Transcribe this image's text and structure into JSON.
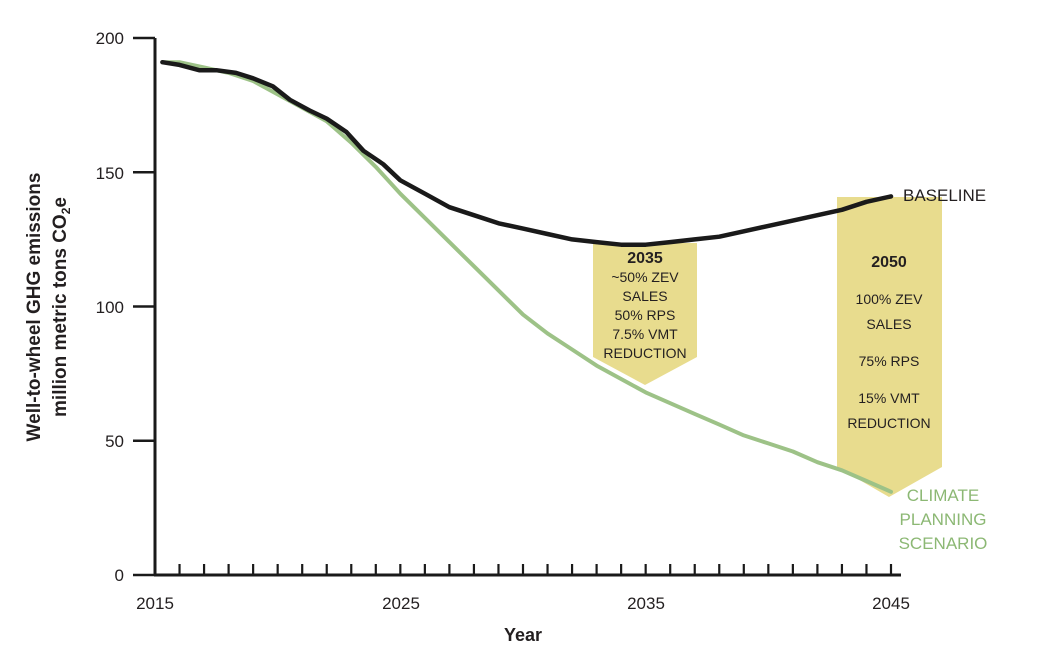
{
  "chart_data": {
    "type": "line",
    "xlabel": "Year",
    "ylabel_line1": "Well-to-wheel GHG emissions",
    "ylabel_line2_main": "million metric tons CO",
    "ylabel_line2_sub": "2",
    "ylabel_line2_tail": "e",
    "xlim": [
      2015,
      2045
    ],
    "ylim": [
      0,
      200
    ],
    "x_ticks": [
      2015,
      2025,
      2035,
      2045
    ],
    "y_ticks": [
      0,
      50,
      100,
      150,
      200
    ],
    "series": [
      {
        "name": "BASELINE",
        "color": "#1a1a1a",
        "points": [
          [
            2015.3,
            191
          ],
          [
            2016,
            190
          ],
          [
            2016.8,
            188
          ],
          [
            2017.5,
            188
          ],
          [
            2018.3,
            187
          ],
          [
            2019,
            185
          ],
          [
            2019.8,
            182
          ],
          [
            2020.5,
            177
          ],
          [
            2021.3,
            173
          ],
          [
            2022,
            170
          ],
          [
            2022.8,
            165
          ],
          [
            2023.5,
            158
          ],
          [
            2024.3,
            153
          ],
          [
            2025,
            147
          ],
          [
            2026,
            142
          ],
          [
            2027,
            137
          ],
          [
            2028,
            134
          ],
          [
            2029,
            131
          ],
          [
            2030,
            129
          ],
          [
            2031,
            127
          ],
          [
            2032,
            125
          ],
          [
            2033,
            124
          ],
          [
            2034,
            123
          ],
          [
            2035,
            123
          ],
          [
            2036,
            124
          ],
          [
            2037,
            125
          ],
          [
            2038,
            126
          ],
          [
            2039,
            128
          ],
          [
            2040,
            130
          ],
          [
            2041,
            132
          ],
          [
            2042,
            134
          ],
          [
            2043,
            136
          ],
          [
            2044,
            139
          ],
          [
            2045,
            141
          ]
        ]
      },
      {
        "name": "CLIMATE PLANNING SCENARIO",
        "color": "#9dc287",
        "points": [
          [
            2015.3,
            191
          ],
          [
            2016,
            191
          ],
          [
            2017,
            189
          ],
          [
            2018,
            187
          ],
          [
            2019,
            184
          ],
          [
            2020,
            179
          ],
          [
            2021,
            174
          ],
          [
            2022,
            169
          ],
          [
            2023,
            161
          ],
          [
            2024,
            152
          ],
          [
            2025,
            142
          ],
          [
            2026,
            133
          ],
          [
            2027,
            124
          ],
          [
            2028,
            115
          ],
          [
            2029,
            106
          ],
          [
            2030,
            97
          ],
          [
            2031,
            90
          ],
          [
            2032,
            84
          ],
          [
            2033,
            78
          ],
          [
            2034,
            73
          ],
          [
            2035,
            68
          ],
          [
            2036,
            64
          ],
          [
            2037,
            60
          ],
          [
            2038,
            56
          ],
          [
            2039,
            52
          ],
          [
            2040,
            49
          ],
          [
            2041,
            46
          ],
          [
            2042,
            42
          ],
          [
            2043,
            39
          ],
          [
            2044,
            35
          ],
          [
            2045,
            31
          ]
        ]
      }
    ],
    "series_labels": {
      "baseline": "BASELINE",
      "climate": [
        "CLIMATE",
        "PLANNING",
        "SCENARIO"
      ]
    },
    "annotations": [
      {
        "year_label": "2035",
        "lines": [
          "~50% ZEV",
          "SALES",
          "50% RPS",
          "7.5% VMT",
          "REDUCTION"
        ],
        "fill": "#e8dc8e"
      },
      {
        "year_label": "2050",
        "lines": [
          "100% ZEV",
          "SALES",
          "75% RPS",
          "15% VMT",
          "REDUCTION"
        ],
        "fill": "#e8dc8e"
      }
    ]
  }
}
